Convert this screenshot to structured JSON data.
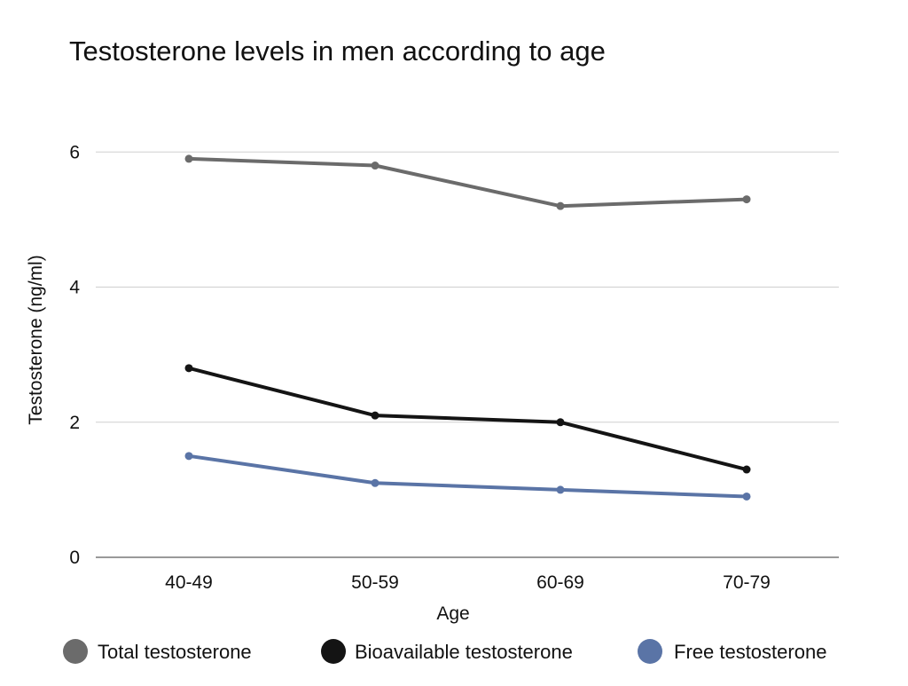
{
  "chart_data": {
    "type": "line",
    "title": "Testosterone levels in men according to age",
    "xlabel": "Age",
    "ylabel": "Testosterone (ng/ml)",
    "categories": [
      "40-49",
      "50-59",
      "60-69",
      "70-79"
    ],
    "ylim": [
      0,
      6.7
    ],
    "yticks": [
      0,
      2,
      4,
      6
    ],
    "grid": true,
    "legend_position": "bottom",
    "series": [
      {
        "name": "Total testosterone",
        "color": "#6b6b6b",
        "values": [
          5.9,
          5.8,
          5.2,
          5.3
        ]
      },
      {
        "name": "Bioavailable testosterone",
        "color": "#141414",
        "values": [
          2.8,
          2.1,
          2.0,
          1.3
        ]
      },
      {
        "name": "Free testosterone",
        "color": "#5a74a6",
        "values": [
          1.5,
          1.1,
          1.0,
          0.9
        ]
      }
    ]
  }
}
